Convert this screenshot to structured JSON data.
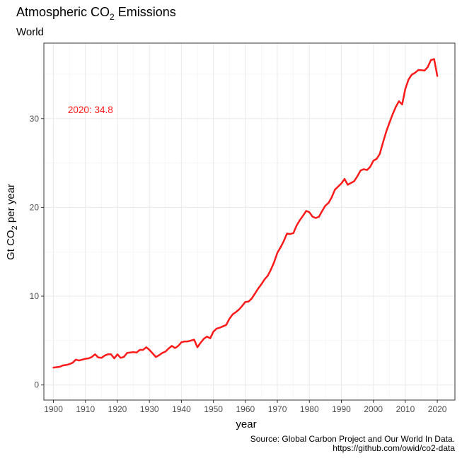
{
  "chart_data": {
    "type": "line",
    "title_prefix": "Atmospheric CO",
    "title_sub": "2",
    "title_suffix": " Emissions",
    "subtitle": "World",
    "xlabel": "year",
    "ylabel_prefix": "Gt CO",
    "ylabel_sub": "2",
    "ylabel_suffix": " per year",
    "xlim": [
      1897.0,
      2025.5
    ],
    "ylim": [
      -1.7,
      38.5
    ],
    "xticks": [
      1900,
      1910,
      1920,
      1930,
      1940,
      1950,
      1960,
      1970,
      1980,
      1990,
      2000,
      2010,
      2020
    ],
    "yticks": [
      0,
      10,
      20,
      30
    ],
    "grid": true,
    "caption_line1": "Source: Global Carbon Project and Our World In Data.",
    "caption_line2": "https://github.com/owid/co2-data",
    "annotation": {
      "text": "2020: 34.8",
      "x": 1904.5,
      "y": 31.0
    },
    "line_color": "#ff1a1a",
    "series": [
      {
        "x": [
          1900,
          1901,
          1902,
          1903,
          1904,
          1905,
          1906,
          1907,
          1908,
          1909,
          1910,
          1911,
          1912,
          1913,
          1914,
          1915,
          1916,
          1917,
          1918,
          1919,
          1920,
          1921,
          1922,
          1923,
          1924,
          1925,
          1926,
          1927,
          1928,
          1929,
          1930,
          1931,
          1932,
          1933,
          1934,
          1935,
          1936,
          1937,
          1938,
          1939,
          1940,
          1941,
          1942,
          1943,
          1944,
          1945,
          1946,
          1947,
          1948,
          1949,
          1950,
          1951,
          1952,
          1953,
          1954,
          1955,
          1956,
          1957,
          1958,
          1959,
          1960,
          1961,
          1962,
          1963,
          1964,
          1965,
          1966,
          1967,
          1968,
          1969,
          1970,
          1971,
          1972,
          1973,
          1974,
          1975,
          1976,
          1977,
          1978,
          1979,
          1980,
          1981,
          1982,
          1983,
          1984,
          1985,
          1986,
          1987,
          1988,
          1989,
          1990,
          1991,
          1992,
          1993,
          1994,
          1995,
          1996,
          1997,
          1998,
          1999,
          2000,
          2001,
          2002,
          2003,
          2004,
          2005,
          2006,
          2007,
          2008,
          2009,
          2010,
          2011,
          2012,
          2013,
          2014,
          2015,
          2016,
          2017,
          2018,
          2019,
          2020
        ],
        "values": [
          1.95,
          2.0,
          2.05,
          2.2,
          2.25,
          2.35,
          2.5,
          2.85,
          2.75,
          2.85,
          2.95,
          3.0,
          3.15,
          3.45,
          3.1,
          3.05,
          3.3,
          3.45,
          3.45,
          3.0,
          3.45,
          3.05,
          3.15,
          3.6,
          3.65,
          3.7,
          3.65,
          3.95,
          3.95,
          4.25,
          3.95,
          3.55,
          3.15,
          3.35,
          3.6,
          3.75,
          4.1,
          4.4,
          4.15,
          4.4,
          4.8,
          4.9,
          4.9,
          5.0,
          5.1,
          4.25,
          4.75,
          5.2,
          5.45,
          5.25,
          6.0,
          6.35,
          6.45,
          6.6,
          6.75,
          7.45,
          7.95,
          8.2,
          8.5,
          8.9,
          9.35,
          9.4,
          9.75,
          10.3,
          10.85,
          11.35,
          11.9,
          12.3,
          13.0,
          13.85,
          14.9,
          15.5,
          16.2,
          17.05,
          17.0,
          17.1,
          17.95,
          18.55,
          19.05,
          19.6,
          19.45,
          18.95,
          18.8,
          18.95,
          19.6,
          20.2,
          20.5,
          21.15,
          22.0,
          22.35,
          22.7,
          23.2,
          22.55,
          22.75,
          22.95,
          23.5,
          24.15,
          24.3,
          24.2,
          24.55,
          25.25,
          25.45,
          26.0,
          27.3,
          28.5,
          29.5,
          30.45,
          31.3,
          31.95,
          31.6,
          33.35,
          34.4,
          34.95,
          35.15,
          35.45,
          35.45,
          35.4,
          35.8,
          36.6,
          36.7,
          34.8
        ]
      }
    ]
  }
}
